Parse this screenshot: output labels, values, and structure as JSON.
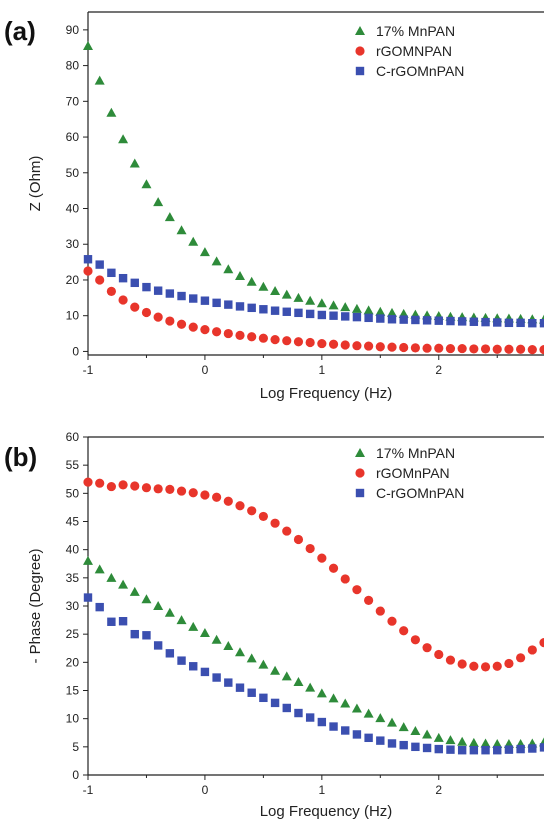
{
  "chart_data": [
    {
      "panel": "(a)",
      "type": "scatter",
      "xlabel": "Log Frequency (Hz)",
      "ylabel": "Z (Ohm)",
      "xlim": [
        -1,
        2.9
      ],
      "ylim": [
        -1,
        95
      ],
      "xticks": [
        "-1",
        "0",
        "1",
        "2"
      ],
      "yticks": [
        "0",
        "10",
        "20",
        "30",
        "40",
        "50",
        "60",
        "70",
        "80",
        "90"
      ],
      "legend_position": "top-right",
      "series": [
        {
          "name": "17% MnPAN",
          "color": "#2e8b3a",
          "marker": "triangle",
          "x": [
            -1.0,
            -0.9,
            -0.8,
            -0.7,
            -0.6,
            -0.5,
            -0.4,
            -0.3,
            -0.2,
            -0.1,
            0.0,
            0.1,
            0.2,
            0.3,
            0.4,
            0.5,
            0.6,
            0.7,
            0.8,
            0.9,
            1.0,
            1.1,
            1.2,
            1.3,
            1.4,
            1.5,
            1.6,
            1.7,
            1.8,
            1.9,
            2.0,
            2.1,
            2.2,
            2.3,
            2.4,
            2.5,
            2.6,
            2.7,
            2.8,
            2.9
          ],
          "y": [
            85.5,
            75.8,
            66.8,
            59.4,
            52.6,
            46.8,
            41.8,
            37.6,
            33.9,
            30.7,
            27.8,
            25.2,
            23.0,
            21.1,
            19.5,
            18.1,
            16.9,
            15.9,
            15.0,
            14.2,
            13.5,
            12.9,
            12.4,
            11.9,
            11.5,
            11.1,
            10.8,
            10.5,
            10.3,
            10.1,
            9.9,
            9.7,
            9.6,
            9.5,
            9.4,
            9.3,
            9.2,
            9.1,
            9.0,
            8.9
          ]
        },
        {
          "name": "rGOMNPAN",
          "color": "#e8352b",
          "marker": "circle",
          "x": [
            -1.0,
            -0.9,
            -0.8,
            -0.7,
            -0.6,
            -0.5,
            -0.4,
            -0.3,
            -0.2,
            -0.1,
            0.0,
            0.1,
            0.2,
            0.3,
            0.4,
            0.5,
            0.6,
            0.7,
            0.8,
            0.9,
            1.0,
            1.1,
            1.2,
            1.3,
            1.4,
            1.5,
            1.6,
            1.7,
            1.8,
            1.9,
            2.0,
            2.1,
            2.2,
            2.3,
            2.4,
            2.5,
            2.6,
            2.7,
            2.8,
            2.9
          ],
          "y": [
            22.5,
            20.0,
            16.8,
            14.4,
            12.4,
            10.9,
            9.6,
            8.5,
            7.6,
            6.8,
            6.1,
            5.5,
            5.0,
            4.5,
            4.1,
            3.7,
            3.3,
            3.0,
            2.7,
            2.5,
            2.2,
            2.0,
            1.8,
            1.6,
            1.5,
            1.3,
            1.2,
            1.1,
            1.0,
            0.9,
            0.9,
            0.8,
            0.8,
            0.7,
            0.7,
            0.6,
            0.6,
            0.6,
            0.5,
            0.5
          ]
        },
        {
          "name": "C-rGOMnPAN",
          "color": "#3b4fb0",
          "marker": "square",
          "x": [
            -1.0,
            -0.9,
            -0.8,
            -0.7,
            -0.6,
            -0.5,
            -0.4,
            -0.3,
            -0.2,
            -0.1,
            0.0,
            0.1,
            0.2,
            0.3,
            0.4,
            0.5,
            0.6,
            0.7,
            0.8,
            0.9,
            1.0,
            1.1,
            1.2,
            1.3,
            1.4,
            1.5,
            1.6,
            1.7,
            1.8,
            1.9,
            2.0,
            2.1,
            2.2,
            2.3,
            2.4,
            2.5,
            2.6,
            2.7,
            2.8,
            2.9
          ],
          "y": [
            25.8,
            24.3,
            22.0,
            20.5,
            19.2,
            18.0,
            17.0,
            16.2,
            15.5,
            14.8,
            14.2,
            13.6,
            13.1,
            12.6,
            12.2,
            11.8,
            11.4,
            11.1,
            10.8,
            10.5,
            10.2,
            10.0,
            9.8,
            9.6,
            9.4,
            9.2,
            9.0,
            8.9,
            8.8,
            8.7,
            8.6,
            8.5,
            8.4,
            8.3,
            8.2,
            8.1,
            8.0,
            8.0,
            7.9,
            7.9
          ]
        }
      ]
    },
    {
      "panel": "(b)",
      "type": "scatter",
      "xlabel": "Log Frequency (Hz)",
      "ylabel": "- Phase (Degree)",
      "xlim": [
        -1,
        2.9
      ],
      "ylim": [
        0,
        60
      ],
      "xticks": [
        "-1",
        "0",
        "1",
        "2"
      ],
      "yticks": [
        "0",
        "5",
        "10",
        "15",
        "20",
        "25",
        "30",
        "35",
        "40",
        "45",
        "50",
        "55",
        "60"
      ],
      "legend_position": "top-right",
      "series": [
        {
          "name": "17% MnPAN",
          "color": "#2e8b3a",
          "marker": "triangle",
          "x": [
            -1.0,
            -0.9,
            -0.8,
            -0.7,
            -0.6,
            -0.5,
            -0.4,
            -0.3,
            -0.2,
            -0.1,
            0.0,
            0.1,
            0.2,
            0.3,
            0.4,
            0.5,
            0.6,
            0.7,
            0.8,
            0.9,
            1.0,
            1.1,
            1.2,
            1.3,
            1.4,
            1.5,
            1.6,
            1.7,
            1.8,
            1.9,
            2.0,
            2.1,
            2.2,
            2.3,
            2.4,
            2.5,
            2.6,
            2.7,
            2.8,
            2.9
          ],
          "y": [
            38.0,
            36.5,
            35.0,
            33.8,
            32.5,
            31.2,
            30.0,
            28.8,
            27.5,
            26.3,
            25.2,
            24.0,
            22.9,
            21.8,
            20.7,
            19.6,
            18.5,
            17.5,
            16.5,
            15.5,
            14.5,
            13.6,
            12.7,
            11.8,
            10.9,
            10.1,
            9.3,
            8.5,
            7.8,
            7.2,
            6.6,
            6.2,
            5.9,
            5.7,
            5.6,
            5.5,
            5.5,
            5.5,
            5.6,
            5.8
          ]
        },
        {
          "name": "rGOMnPAN",
          "color": "#e8352b",
          "marker": "circle",
          "x": [
            -1.0,
            -0.9,
            -0.8,
            -0.7,
            -0.6,
            -0.5,
            -0.4,
            -0.3,
            -0.2,
            -0.1,
            0.0,
            0.1,
            0.2,
            0.3,
            0.4,
            0.5,
            0.6,
            0.7,
            0.8,
            0.9,
            1.0,
            1.1,
            1.2,
            1.3,
            1.4,
            1.5,
            1.6,
            1.7,
            1.8,
            1.9,
            2.0,
            2.1,
            2.2,
            2.3,
            2.4,
            2.5,
            2.6,
            2.7,
            2.8,
            2.9
          ],
          "y": [
            52.0,
            51.8,
            51.2,
            51.5,
            51.3,
            51.0,
            50.8,
            50.7,
            50.4,
            50.1,
            49.7,
            49.3,
            48.6,
            47.8,
            46.9,
            45.9,
            44.7,
            43.3,
            41.8,
            40.2,
            38.5,
            36.7,
            34.8,
            32.9,
            31.0,
            29.1,
            27.3,
            25.6,
            24.0,
            22.6,
            21.4,
            20.4,
            19.7,
            19.3,
            19.2,
            19.3,
            19.8,
            20.8,
            22.2,
            23.5
          ]
        },
        {
          "name": "C-rGOMnPAN",
          "color": "#3b4fb0",
          "marker": "square",
          "x": [
            -1.0,
            -0.9,
            -0.8,
            -0.7,
            -0.6,
            -0.5,
            -0.4,
            -0.3,
            -0.2,
            -0.1,
            0.0,
            0.1,
            0.2,
            0.3,
            0.4,
            0.5,
            0.6,
            0.7,
            0.8,
            0.9,
            1.0,
            1.1,
            1.2,
            1.3,
            1.4,
            1.5,
            1.6,
            1.7,
            1.8,
            1.9,
            2.0,
            2.1,
            2.2,
            2.3,
            2.4,
            2.5,
            2.6,
            2.7,
            2.8,
            2.9
          ],
          "y": [
            31.5,
            29.8,
            27.2,
            27.3,
            25.0,
            24.8,
            23.0,
            21.6,
            20.3,
            19.3,
            18.3,
            17.3,
            16.4,
            15.5,
            14.6,
            13.7,
            12.8,
            11.9,
            11.0,
            10.2,
            9.4,
            8.6,
            7.9,
            7.2,
            6.6,
            6.1,
            5.6,
            5.3,
            5.0,
            4.8,
            4.6,
            4.5,
            4.4,
            4.4,
            4.4,
            4.4,
            4.5,
            4.6,
            4.7,
            4.9
          ]
        }
      ]
    }
  ]
}
